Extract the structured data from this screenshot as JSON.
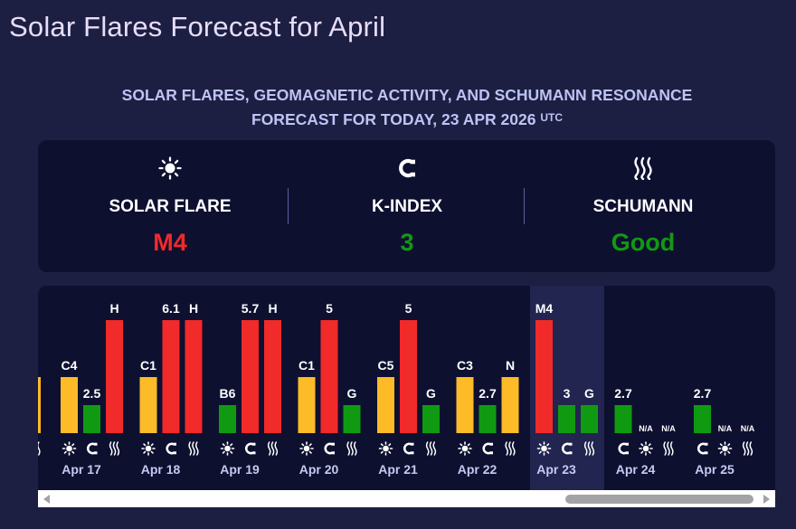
{
  "page": {
    "title": "Solar Flares Forecast for April",
    "subtitle_line1": "SOLAR FLARES, GEOMAGNETIC ACTIVITY, AND SCHUMANN RESONANCE",
    "subtitle_line2": "FORECAST FOR TODAY, 23 APR 2026",
    "subtitle_sup": "UTC"
  },
  "summary": [
    {
      "label": "SOLAR FLARE",
      "value": "M4",
      "icon": "sun-icon",
      "color": "#f12a2a"
    },
    {
      "label": "K-INDEX",
      "value": "3",
      "icon": "magnet-icon",
      "color": "#109a12"
    },
    {
      "label": "SCHUMANN",
      "value": "Good",
      "icon": "waves-icon",
      "color": "#109a12"
    }
  ],
  "colors": {
    "red": "#f12a2a",
    "yellow": "#fdbb28",
    "green": "#109a12",
    "today_bg": "#22254f",
    "panel": "#0e1030"
  },
  "chart_data": {
    "type": "bar",
    "today": "Apr 23",
    "icon_order_note_hidden": "",
    "days": [
      {
        "date": "Apr 17",
        "flare": {
          "label": "C4",
          "level": 2
        },
        "kindex": {
          "label": "2.5",
          "level": 1
        },
        "schumann": {
          "label": "H",
          "level": 5,
          "color": "red"
        }
      },
      {
        "date": "Apr 18",
        "flare": {
          "label": "C1",
          "level": 2
        },
        "kindex": {
          "label": "6.1",
          "level": 5
        },
        "schumann": {
          "label": "H",
          "level": 5,
          "color": "red"
        }
      },
      {
        "date": "Apr 19",
        "flare": {
          "label": "B6",
          "level": 1
        },
        "kindex": {
          "label": "5.7",
          "level": 5
        },
        "schumann": {
          "label": "H",
          "level": 5,
          "color": "red"
        }
      },
      {
        "date": "Apr 20",
        "flare": {
          "label": "C1",
          "level": 2
        },
        "kindex": {
          "label": "5",
          "level": 5
        },
        "schumann": {
          "label": "G",
          "level": 1,
          "color": "green"
        }
      },
      {
        "date": "Apr 21",
        "flare": {
          "label": "C5",
          "level": 2
        },
        "kindex": {
          "label": "5",
          "level": 5
        },
        "schumann": {
          "label": "G",
          "level": 1,
          "color": "green"
        }
      },
      {
        "date": "Apr 22",
        "flare": {
          "label": "C3",
          "level": 2
        },
        "kindex": {
          "label": "2.7",
          "level": 1
        },
        "schumann": {
          "label": "N",
          "level": 2,
          "color": "yellow"
        }
      },
      {
        "date": "Apr 23",
        "flare": {
          "label": "M4",
          "level": 5
        },
        "kindex": {
          "label": "3",
          "level": 1
        },
        "schumann": {
          "label": "G",
          "level": 1,
          "color": "green"
        }
      },
      {
        "date": "Apr 24",
        "kindex": {
          "label": "2.7",
          "level": 1
        },
        "flare": {
          "label": "N/A",
          "level": 0
        },
        "schumann": {
          "label": "N/A",
          "level": 0
        }
      },
      {
        "date": "Apr 25",
        "kindex": {
          "label": "2.7",
          "level": 1
        },
        "flare": {
          "label": "N/A",
          "level": 0
        },
        "schumann": {
          "label": "N/A",
          "level": 0
        }
      }
    ]
  }
}
